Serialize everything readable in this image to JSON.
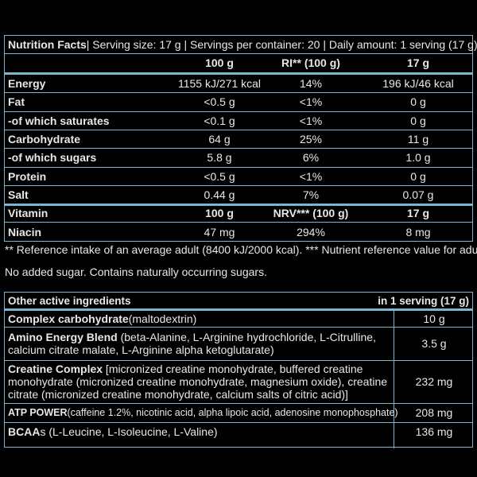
{
  "nutrition": {
    "header": {
      "title": "Nutrition Facts",
      "rest": " | Serving size: 17 g | Servings per container: 20 | Daily amount: 1 serving (17 g)"
    },
    "columns": {
      "c1": "100 g",
      "c2": "RI** (100 g)",
      "c3": "17 g"
    },
    "rows": [
      {
        "label": "Energy",
        "v1": "1155 kJ/271 kcal",
        "v2": "14%",
        "v3": "196 kJ/46 kcal",
        "bold": true
      },
      {
        "label": "Fat",
        "v1": "<0.5 g",
        "v2": "<1%",
        "v3": "0 g",
        "bold": true
      },
      {
        "label": "-of which saturates",
        "v1": "<0.1 g",
        "v2": "<1%",
        "v3": "0 g",
        "bold": true
      },
      {
        "label": "Carbohydrate",
        "v1": "64 g",
        "v2": "25%",
        "v3": "11 g",
        "bold": true
      },
      {
        "label": "-of which sugars",
        "v1": "5.8 g",
        "v2": "6%",
        "v3": "1.0 g",
        "bold": true
      },
      {
        "label": "Protein",
        "v1": "<0.5 g",
        "v2": "<1%",
        "v3": "0 g",
        "bold": true
      },
      {
        "label": "Salt",
        "v1": "0.44 g",
        "v2": "7%",
        "v3": "0.07 g",
        "bold": true
      }
    ],
    "vitamin_header": {
      "label": "Vitamin",
      "c1": "100 g",
      "c2": "NRV*** (100 g)",
      "c3": "17 g"
    },
    "vitamin_rows": [
      {
        "label": "Niacin",
        "v1": "47 mg",
        "v2": "294%",
        "v3": "8 mg"
      }
    ]
  },
  "notes": {
    "reference": "** Reference intake of an average adult (8400 kJ/2000 kcal). *** Nutrient reference value for adults.",
    "sugar": "No added sugar. Contains naturally occurring sugars."
  },
  "active": {
    "header": {
      "label": "Other active ingredients",
      "amount": "in 1 serving (17 g)"
    },
    "rows": [
      {
        "name": "Complex carbohydrate",
        "detail": " (maltodextrin)",
        "amount": "10 g"
      },
      {
        "name": "Amino Energy Blend",
        "detail": " (beta-Alanine, L-Arginine hydrochloride, L-Citrulline, calcium citrate malate, L-Arginine alpha ketoglutarate)",
        "amount": "3.5 g"
      },
      {
        "name": "Creatine Complex",
        "detail": " [micronized creatine monohydrate, buffered creatine monohydrate (micronized creatine monohydrate, magnesium oxide), creatine citrate (micronized creatine monohydrate, calcium salts of citric acid)]",
        "amount": "232 mg"
      },
      {
        "name": "ATP POWER",
        "detail": " (caffeine 1.2%, nicotinic acid, alpha lipoic acid, adenosine monophosphate)",
        "amount": "208 mg"
      },
      {
        "name": "BCAA",
        "detail": "s (L-Leucine, L-Isoleucine, L-Valine)",
        "amount": "136 mg"
      }
    ]
  }
}
